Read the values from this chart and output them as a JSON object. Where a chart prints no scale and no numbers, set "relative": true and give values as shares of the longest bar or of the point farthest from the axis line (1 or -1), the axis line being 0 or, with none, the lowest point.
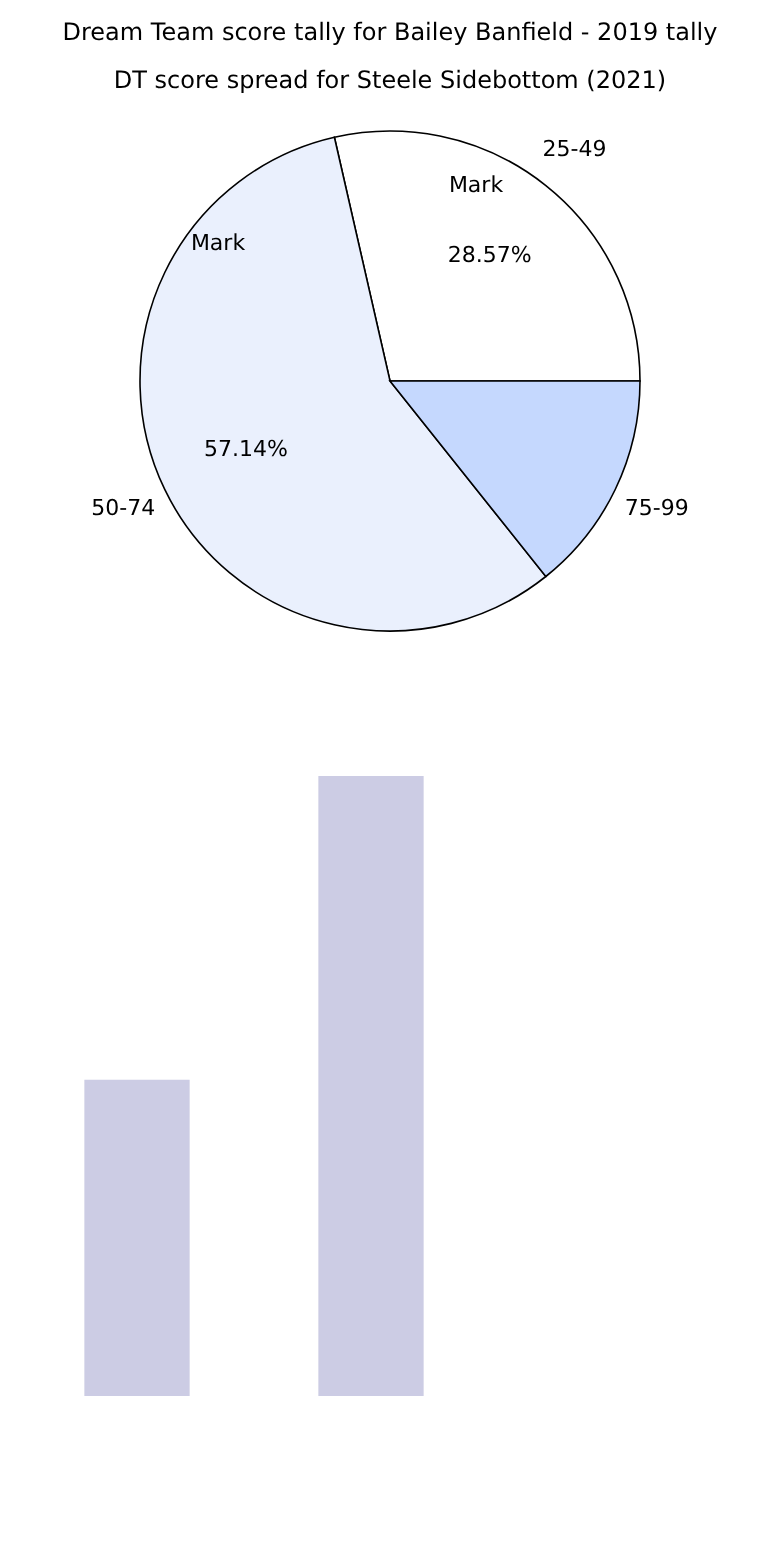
{
  "chart_data": [
    {
      "type": "pie",
      "title": "Dream Team score tally for Bailey Banfield - 2019 tally",
      "subtitle": "DT score spread for Steele Sidebottom (2021)",
      "categories": [
        "25-49",
        "50-74",
        "75-99"
      ],
      "values": [
        28.57,
        57.14,
        14.29
      ],
      "colors": [
        "#ffffff",
        "#eaf0fd",
        "#c5d8fe"
      ],
      "value_labels": [
        "28.57%",
        "57.14%",
        null
      ],
      "annotations": [
        "Mark",
        "Mark"
      ]
    },
    {
      "type": "bar",
      "categories": [
        null,
        null
      ],
      "values": [
        0.51,
        1
      ],
      "color": "#cccce4",
      "relative": true
    }
  ]
}
